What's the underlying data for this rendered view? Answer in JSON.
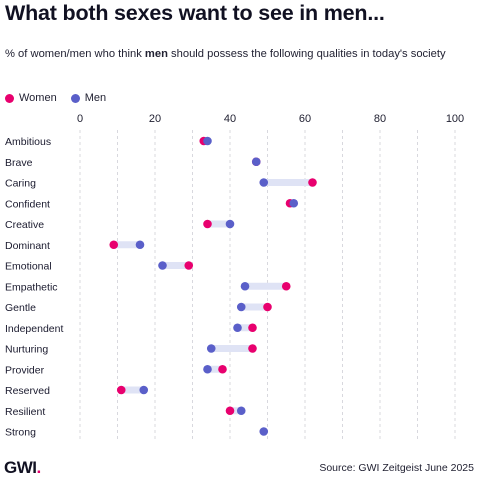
{
  "header": {
    "title": "What both sexes want to see in men...",
    "subtitle_pre": "% of women/men who think ",
    "subtitle_bold": "men",
    "subtitle_post": " should possess the following qualities in today's society"
  },
  "footer": {
    "logo_text": "GWI",
    "logo_dot": ".",
    "source": "Source: GWI Zeitgeist June 2025"
  },
  "colors": {
    "women": "#e8006e",
    "men": "#5a5fc9",
    "connector": "#dfe3f5",
    "grid": "#d8d8de"
  },
  "chart_data": {
    "type": "dot",
    "title": "What both sexes want to see in men...",
    "xlim": [
      0,
      100
    ],
    "x_ticks": [
      0,
      20,
      40,
      60,
      80,
      100
    ],
    "grid": true,
    "legend_position": "top-left",
    "categories": [
      "Ambitious",
      "Brave",
      "Caring",
      "Confident",
      "Creative",
      "Dominant",
      "Emotional",
      "Empathetic",
      "Gentle",
      "Independent",
      "Nurturing",
      "Provider",
      "Reserved",
      "Resilient",
      "Strong"
    ],
    "series": [
      {
        "name": "Women",
        "values": [
          33,
          47,
          62,
          56,
          34,
          9,
          29,
          55,
          50,
          46,
          46,
          38,
          11,
          40,
          null
        ]
      },
      {
        "name": "Men",
        "values": [
          34,
          47,
          49,
          57,
          40,
          16,
          22,
          44,
          43,
          42,
          35,
          34,
          17,
          43,
          49
        ]
      }
    ]
  }
}
